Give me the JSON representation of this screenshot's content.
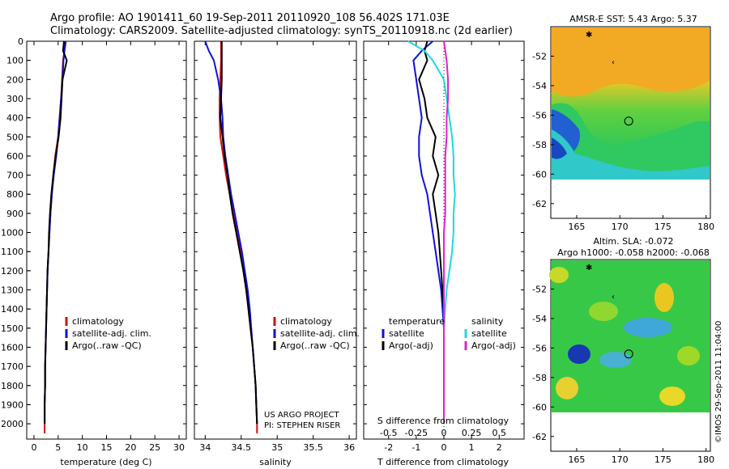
{
  "header": {
    "line1": "Argo profile: AO 1901411_60 19-Sep-2011 20110920_108 56.402S 171.03E",
    "line2": "Climatology: CARS2009. Satellite-adjusted climatology: synTS_20110918.nc (2d earlier)"
  },
  "colors": {
    "climatology": "#d01010",
    "satellite": "#1010d8",
    "argo": "#000000",
    "sat_salinity": "#20d8e0",
    "argo_salinity": "#e020d0"
  },
  "chart_data": [
    {
      "type": "line",
      "id": "temperature",
      "xlabel": "temperature (deg C)",
      "xlim": [
        -1.5,
        31.5
      ],
      "xticks": [
        0,
        5,
        10,
        15,
        20,
        25,
        30
      ],
      "ylim": [
        0,
        2080
      ],
      "yticks": [
        0,
        100,
        200,
        300,
        400,
        500,
        600,
        700,
        800,
        900,
        1000,
        1100,
        1200,
        1300,
        1400,
        1500,
        1600,
        1700,
        1800,
        1900,
        2000
      ],
      "y_reversed": true,
      "legend": [
        "climatology",
        "satellite-adj. clim.",
        "Argo(..raw -QC)"
      ],
      "series": [
        {
          "name": "climatology",
          "color": "#d01010",
          "x": [
            6.6,
            6.3,
            6.0,
            5.8,
            5.6,
            5.3,
            5.0,
            4.4,
            4.0,
            3.7,
            3.4,
            3.2,
            3.0,
            2.8,
            2.7,
            2.6,
            2.5,
            2.4,
            2.3,
            2.3,
            2.2,
            2.2,
            2.2
          ],
          "y": [
            0,
            50,
            100,
            200,
            300,
            400,
            500,
            600,
            700,
            800,
            900,
            1000,
            1100,
            1200,
            1300,
            1400,
            1500,
            1600,
            1700,
            1800,
            1900,
            2000,
            2050
          ]
        },
        {
          "name": "satellite-adj. clim.",
          "color": "#1010d8",
          "x": [
            6.5,
            6.3,
            6.1,
            5.9,
            5.6,
            5.3,
            5.0,
            4.6,
            4.1,
            3.7,
            3.4,
            3.2,
            3.0,
            2.8,
            2.7,
            2.6,
            2.5,
            2.4,
            2.3,
            2.3,
            2.2,
            2.2
          ],
          "y": [
            0,
            50,
            100,
            200,
            300,
            400,
            500,
            600,
            700,
            800,
            900,
            1000,
            1100,
            1200,
            1300,
            1400,
            1500,
            1600,
            1700,
            1800,
            1900,
            2000
          ]
        },
        {
          "name": "Argo(..raw -QC)",
          "color": "#000000",
          "x": [
            6.2,
            6.0,
            6.8,
            5.9,
            5.7,
            5.5,
            5.1,
            4.5,
            4.0,
            3.6,
            3.3,
            3.1,
            3.0,
            2.8,
            2.7,
            2.6,
            2.5,
            2.4,
            2.3,
            2.3,
            2.2,
            2.2
          ],
          "y": [
            0,
            50,
            100,
            200,
            300,
            400,
            500,
            600,
            700,
            800,
            900,
            1000,
            1100,
            1200,
            1300,
            1400,
            1500,
            1600,
            1700,
            1800,
            1900,
            2000
          ]
        }
      ]
    },
    {
      "type": "line",
      "id": "salinity",
      "xlabel": "salinity",
      "xlim": [
        33.85,
        36.1
      ],
      "xticks": [
        34,
        34.5,
        35,
        35.5,
        36
      ],
      "ylim": [
        0,
        2080
      ],
      "y_reversed": true,
      "legend": [
        "climatology",
        "satellite-adj. clim.",
        "Argo(..raw -QC)"
      ],
      "annotation": [
        "US ARGO PROJECT",
        "PI: STEPHEN RISER"
      ],
      "series": [
        {
          "name": "climatology",
          "color": "#d01010",
          "x": [
            34.22,
            34.22,
            34.22,
            34.21,
            34.2,
            34.2,
            34.21,
            34.25,
            34.29,
            34.34,
            34.39,
            34.44,
            34.49,
            34.53,
            34.57,
            34.6,
            34.63,
            34.66,
            34.68,
            34.7,
            34.71,
            34.72,
            34.72
          ],
          "y": [
            0,
            50,
            100,
            200,
            300,
            400,
            500,
            600,
            700,
            800,
            900,
            1000,
            1100,
            1200,
            1300,
            1400,
            1500,
            1600,
            1700,
            1800,
            1900,
            2000,
            2050
          ]
        },
        {
          "name": "satellite-adj. clim.",
          "color": "#1010d8",
          "x": [
            34.0,
            34.05,
            34.12,
            34.18,
            34.22,
            34.24,
            34.25,
            34.28,
            34.32,
            34.36,
            34.41,
            34.46,
            34.51,
            34.55,
            34.59,
            34.62,
            34.64,
            34.66,
            34.68,
            34.7,
            34.71,
            34.72
          ],
          "y": [
            0,
            50,
            100,
            200,
            300,
            400,
            500,
            600,
            700,
            800,
            900,
            1000,
            1100,
            1200,
            1300,
            1400,
            1500,
            1600,
            1700,
            1800,
            1900,
            2000
          ]
        },
        {
          "name": "Argo(..raw -QC)",
          "color": "#000000",
          "x": [
            34.23,
            34.23,
            34.23,
            34.23,
            34.22,
            34.21,
            34.24,
            34.27,
            34.31,
            34.34,
            34.38,
            34.43,
            34.48,
            34.53,
            34.57,
            34.6,
            34.63,
            34.66,
            34.68,
            34.7,
            34.71,
            34.72
          ],
          "y": [
            0,
            50,
            100,
            200,
            300,
            400,
            500,
            600,
            700,
            800,
            900,
            1000,
            1100,
            1200,
            1300,
            1400,
            1500,
            1600,
            1700,
            1800,
            1900,
            2000
          ]
        }
      ]
    },
    {
      "type": "line",
      "id": "differences",
      "xlabel": "T difference from climatology",
      "xlabel_top": "S difference from climatology",
      "xlim": [
        -2.9,
        2.9
      ],
      "xticks": [
        -2,
        -1,
        0,
        1,
        2
      ],
      "xticks_top": [
        "-0.5",
        "-0.25",
        "0",
        "0.25",
        "0.5"
      ],
      "xticks_top_pos": [
        -2,
        -1,
        0,
        1,
        2
      ],
      "ylim": [
        0,
        2080
      ],
      "y_reversed": true,
      "legend_temperature_title": "temperature",
      "legend_salinity_title": "salinity",
      "legend_temperature": [
        "satellite",
        "Argo(-adj)"
      ],
      "legend_salinity": [
        "satellite",
        "Argo(-adj)"
      ],
      "series": [
        {
          "name": "satellite",
          "group": "temperature",
          "color": "#1010d8",
          "x": [
            -0.4,
            -0.8,
            -1.1,
            -1.0,
            -0.9,
            -0.8,
            -0.9,
            -0.9,
            -0.8,
            -0.6,
            -0.5,
            -0.4,
            -0.3,
            -0.2,
            -0.1,
            -0.05,
            0,
            0,
            0,
            0,
            0,
            0
          ],
          "y": [
            0,
            50,
            100,
            200,
            300,
            400,
            500,
            600,
            700,
            800,
            900,
            1000,
            1100,
            1200,
            1300,
            1400,
            1500,
            1600,
            1700,
            1800,
            1900,
            2000
          ]
        },
        {
          "name": "Argo(-adj)",
          "group": "temperature",
          "color": "#000000",
          "x": [
            -0.6,
            -0.7,
            -0.6,
            -0.9,
            -0.7,
            -0.6,
            -0.3,
            -0.4,
            -0.2,
            -0.4,
            -0.3,
            -0.2,
            -0.15,
            -0.1,
            -0.05,
            0,
            0,
            0,
            0,
            0,
            0,
            0
          ],
          "y": [
            0,
            50,
            100,
            200,
            300,
            400,
            500,
            600,
            700,
            800,
            900,
            1000,
            1100,
            1200,
            1300,
            1400,
            1500,
            1600,
            1700,
            1800,
            1900,
            2000
          ]
        },
        {
          "name": "satellite",
          "group": "salinity",
          "color": "#20d8e0",
          "x": [
            -1.3,
            -0.7,
            -0.4,
            0.0,
            0.1,
            0.2,
            0.3,
            0.35,
            0.35,
            0.4,
            0.35,
            0.35,
            0.3,
            0.2,
            0.1,
            0.05,
            0,
            0,
            0,
            0,
            0,
            0
          ],
          "y": [
            0,
            50,
            100,
            200,
            300,
            400,
            500,
            600,
            700,
            800,
            900,
            1000,
            1100,
            1200,
            1300,
            1400,
            1500,
            1600,
            1700,
            1800,
            1900,
            2000
          ]
        },
        {
          "name": "Argo(-adj)",
          "group": "salinity",
          "color": "#e020d0",
          "x": [
            0.0,
            0.05,
            0.1,
            0.15,
            0.15,
            0.1,
            0.1,
            0.05,
            0.05,
            0.05,
            0.05,
            0.0,
            0.0,
            0.0,
            0.0,
            0.0,
            0.0,
            0.0,
            0.0,
            0.0,
            0.0,
            0.0
          ],
          "y": [
            0,
            50,
            100,
            200,
            300,
            400,
            500,
            600,
            700,
            800,
            900,
            1000,
            1100,
            1200,
            1300,
            1400,
            1500,
            1600,
            1700,
            1800,
            1900,
            2000
          ]
        }
      ]
    },
    {
      "type": "heatmap",
      "id": "sst_map",
      "title": "AMSR-E SST: 5.43 Argo: 5.37",
      "xlim": [
        162,
        180.5
      ],
      "ylim": [
        -63,
        -50
      ],
      "xticks": [
        165,
        170,
        175,
        180
      ],
      "yticks": [
        -52,
        -54,
        -56,
        -58,
        -60,
        -62
      ],
      "profile_location": {
        "lon": 171.03,
        "lat": -56.402
      }
    },
    {
      "type": "heatmap",
      "id": "sla_map",
      "title_line1": "Altim. SLA: -0.072",
      "title_line2": "Argo h1000: -0.058 h2000: -0.068",
      "xlim": [
        162,
        180.5
      ],
      "ylim": [
        -63,
        -50
      ],
      "xticks": [
        165,
        170,
        175,
        180
      ],
      "yticks": [
        -52,
        -54,
        -56,
        -58,
        -60,
        -62
      ],
      "profile_location": {
        "lon": 171.03,
        "lat": -56.402
      }
    }
  ],
  "footer": {
    "imos": "©IMOS 29-Sep-2011 11:04:00"
  }
}
